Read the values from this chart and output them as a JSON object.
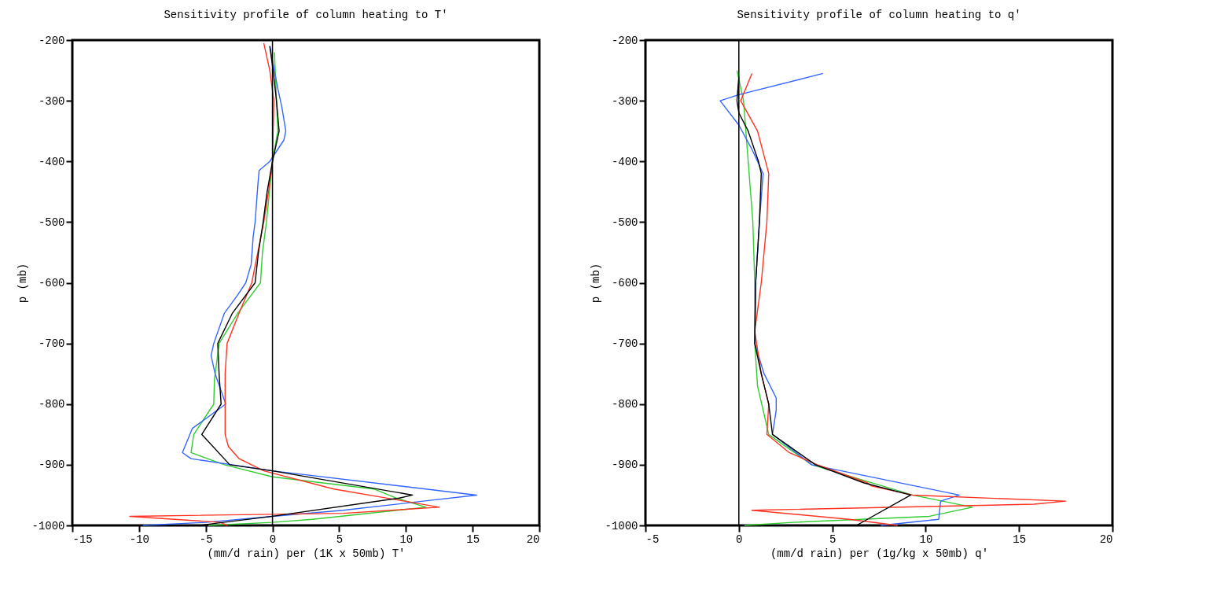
{
  "chart_data": [
    {
      "type": "line",
      "title": "Sensitivity profile of column heating to T'",
      "xlabel": "(mm/d rain) per (1K x 50mb) T'",
      "ylabel": "p (mb)",
      "xlim": [
        -15,
        20
      ],
      "xticks": [
        -15,
        -10,
        -5,
        0,
        5,
        10,
        15,
        20
      ],
      "ylim": [
        -1000,
        -200
      ],
      "yticks": [
        -1000,
        -900,
        -800,
        -700,
        -600,
        -500,
        -400,
        -300,
        -200
      ],
      "ref_lines": [
        {
          "axis": "x",
          "value": 0,
          "color": "#000000"
        }
      ],
      "series": [
        {
          "color": "#33cc33",
          "x": [
            0.15,
            0.3,
            0.4,
            0,
            -0.45,
            -0.75,
            -0.9,
            -2.6,
            -4.0,
            -4.35,
            -4.4,
            -5.9,
            -6.1,
            -3.6,
            0,
            7.6,
            9.3,
            11.5,
            3,
            0,
            -4.8
          ],
          "values": [
            -220,
            -300,
            -350,
            -400,
            -500,
            -550,
            -600,
            -650,
            -700,
            -760,
            -800,
            -850,
            -880,
            -900,
            -920,
            -940,
            -955,
            -970,
            -990,
            -995,
            -1000
          ]
        },
        {
          "color": "#3366ff",
          "x": [
            -0.2,
            0.4,
            0.7,
            1.0,
            0.85,
            -0.2,
            -1.0,
            -1.1,
            -1.3,
            -1.45,
            -1.6,
            -2.0,
            -2.6,
            -3.6,
            -4.4,
            -4.6,
            -4.3,
            -3.5,
            -6.0,
            -6.75,
            -6.1,
            0,
            15.3,
            11.3,
            5.3,
            0,
            -5,
            -9.7
          ],
          "values": [
            -210,
            -280,
            -310,
            -350,
            -365,
            -400,
            -415,
            -440,
            -500,
            -525,
            -570,
            -600,
            -620,
            -650,
            -700,
            -720,
            -750,
            -800,
            -840,
            -880,
            -890,
            -910,
            -950,
            -960,
            -975,
            -985,
            -995,
            -1000
          ]
        },
        {
          "color": "#ff3322",
          "x": [
            -0.65,
            -0.2,
            0.1,
            0,
            -0.3,
            -0.65,
            -1.1,
            -1.55,
            -2.5,
            -3.4,
            -3.55,
            -3.55,
            -3.55,
            -3.3,
            -2.5,
            -0.65,
            4.6,
            9.9,
            12.5,
            5.3,
            -10.7,
            -3.9,
            -3.4
          ],
          "values": [
            -205,
            -250,
            -300,
            -400,
            -450,
            -500,
            -550,
            -600,
            -650,
            -700,
            -750,
            -800,
            -850,
            -870,
            -890,
            -910,
            -940,
            -960,
            -970,
            -980,
            -985,
            -995,
            -1000
          ]
        },
        {
          "color": "#000000",
          "x": [
            -0.2,
            0.05,
            0.3,
            0.5,
            0.2,
            0,
            -0.4,
            -0.7,
            -1.05,
            -1.3,
            -3.0,
            -4.1,
            -4.0,
            -3.85,
            -5.3,
            -3.2,
            0,
            10.5,
            9.5,
            0,
            -5.5
          ],
          "values": [
            -210,
            -250,
            -300,
            -350,
            -380,
            -400,
            -450,
            -500,
            -550,
            -600,
            -650,
            -700,
            -750,
            -800,
            -850,
            -900,
            -910,
            -950,
            -955,
            -985,
            -1000
          ]
        }
      ]
    },
    {
      "type": "line",
      "title": "Sensitivity profile of column heating to q'",
      "xlabel": "(mm/d rain) per (1g/kg x 50mb) q'",
      "ylabel": "p (mb)",
      "xlim": [
        -5,
        20
      ],
      "xticks": [
        -5,
        0,
        5,
        10,
        15,
        20
      ],
      "ylim": [
        -1000,
        -200
      ],
      "yticks": [
        -1000,
        -900,
        -800,
        -700,
        -600,
        -500,
        -400,
        -300,
        -200
      ],
      "ref_lines": [
        {
          "axis": "x",
          "value": 0,
          "color": "#000000"
        }
      ],
      "series": [
        {
          "color": "#33cc33",
          "x": [
            -0.1,
            0.25,
            0.5,
            0.75,
            0.85,
            0.85,
            1.0,
            1.6,
            3.9,
            9.3,
            12.5,
            10.2,
            2.9,
            0.3
          ],
          "values": [
            -250,
            -300,
            -400,
            -500,
            -600,
            -700,
            -770,
            -850,
            -900,
            -950,
            -970,
            -985,
            -995,
            -1000
          ]
        },
        {
          "color": "#3366ff",
          "x": [
            4.5,
            0,
            -1.0,
            0,
            0.7,
            1.3,
            1.1,
            0.9,
            0.85,
            1.35,
            2.0,
            2.0,
            1.8,
            3.9,
            11.8,
            10.8,
            10.7,
            7.6
          ],
          "values": [
            -255,
            -290,
            -300,
            -340,
            -380,
            -420,
            -500,
            -600,
            -700,
            -750,
            -790,
            -810,
            -850,
            -900,
            -950,
            -960,
            -990,
            -1000
          ]
        },
        {
          "color": "#ff3322",
          "x": [
            0.7,
            0.1,
            1.0,
            1.6,
            1.5,
            1.2,
            0.85,
            1.2,
            1.6,
            1.5,
            2.7,
            4.2,
            6.9,
            7.1,
            9.3,
            17.5,
            15.8,
            0.7,
            5.9,
            8.5
          ],
          "values": [
            -255,
            -300,
            -350,
            -420,
            -500,
            -600,
            -680,
            -750,
            -800,
            -850,
            -880,
            -900,
            -930,
            -935,
            -950,
            -960,
            -965,
            -975,
            -990,
            -1000
          ]
        },
        {
          "color": "#000000",
          "x": [
            0,
            -0.1,
            0,
            0.5,
            1.05,
            1.2,
            1.1,
            0.9,
            0.85,
            1.2,
            1.6,
            1.8,
            4.1,
            6.7,
            9.2,
            6.3
          ],
          "values": [
            -260,
            -300,
            -320,
            -350,
            -400,
            -420,
            -500,
            -600,
            -700,
            -750,
            -800,
            -850,
            -900,
            -930,
            -950,
            -1000
          ]
        }
      ]
    }
  ]
}
